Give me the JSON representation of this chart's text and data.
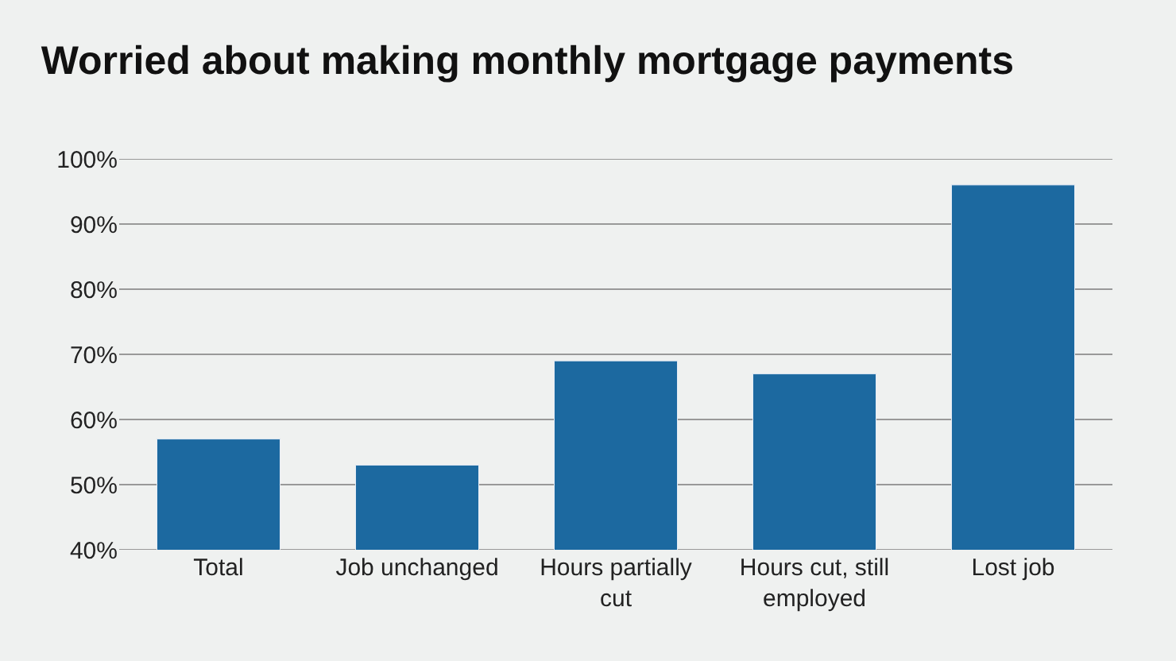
{
  "chart_data": {
    "type": "bar",
    "title": "Worried about making monthly mortgage payments",
    "categories": [
      "Total",
      "Job unchanged",
      "Hours partially cut",
      "Hours cut, still employed",
      "Lost job"
    ],
    "values": [
      57,
      53,
      69,
      67,
      96
    ],
    "color": "#1c69a0",
    "ylim": [
      40,
      100
    ],
    "yticks": [
      {
        "value": 40,
        "label": "40%"
      },
      {
        "value": 50,
        "label": "50%"
      },
      {
        "value": 60,
        "label": "60%"
      },
      {
        "value": 70,
        "label": "70%"
      },
      {
        "value": 80,
        "label": "80%"
      },
      {
        "value": 90,
        "label": "90%"
      },
      {
        "value": 100,
        "label": "100%"
      }
    ],
    "grid": "y"
  }
}
